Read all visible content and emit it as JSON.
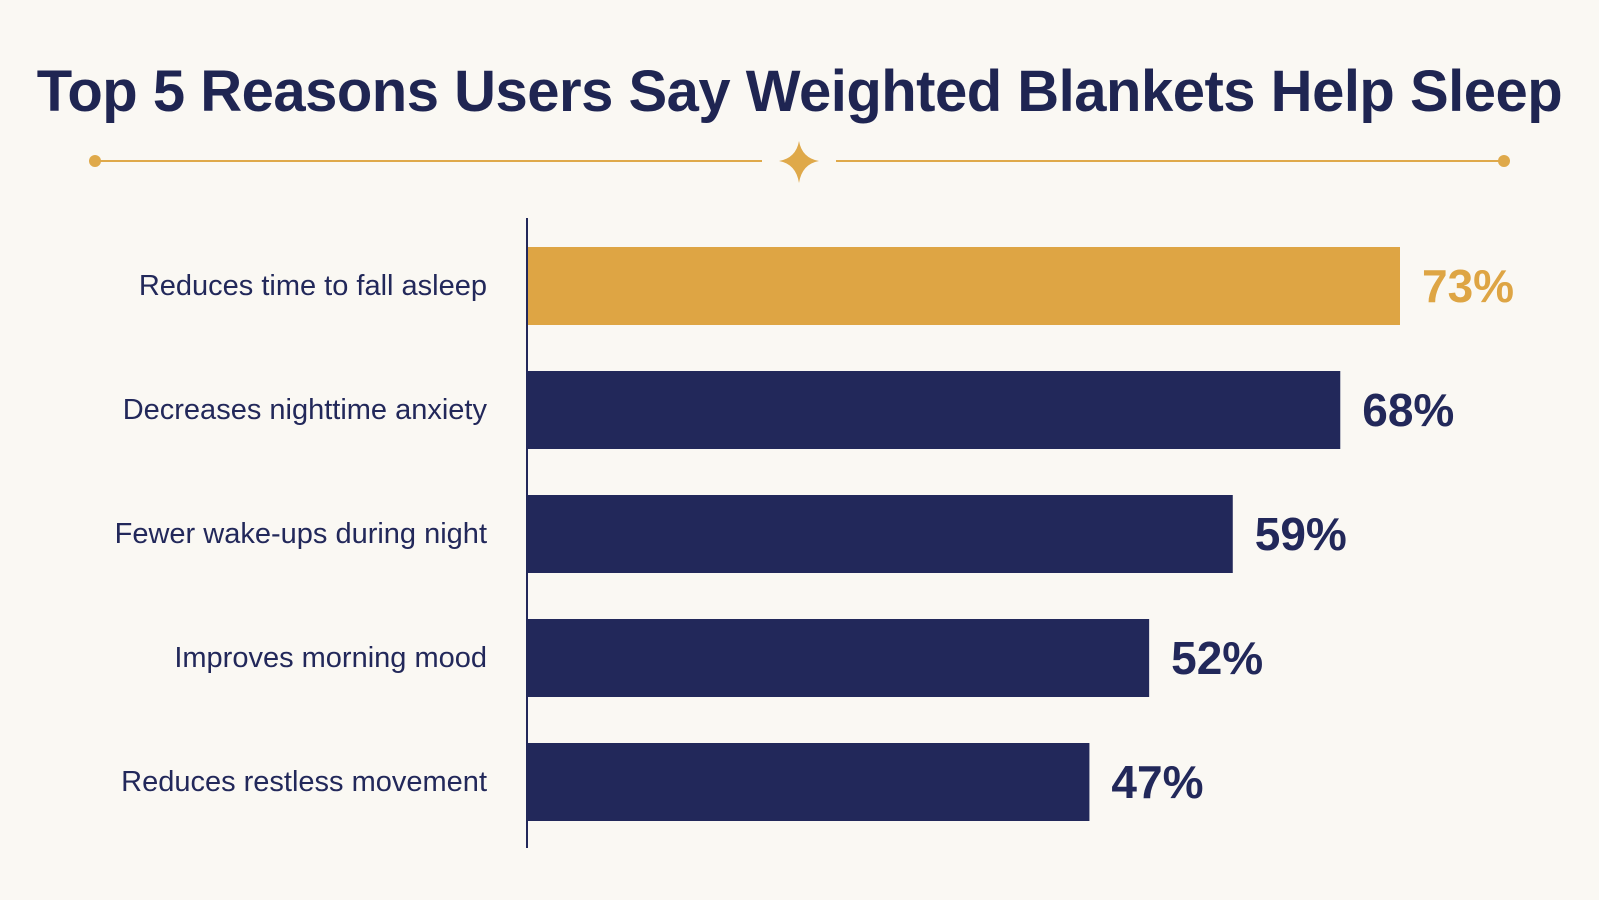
{
  "title": "Top 5 Reasons Users Say Weighted Blankets Help Sleep",
  "colors": {
    "background": "#faf8f3",
    "navy": "#22285a",
    "gold": "#dea544",
    "ornament": "#dfa94a"
  },
  "chart_data": {
    "type": "bar",
    "orientation": "horizontal",
    "title": "Top 5 Reasons Users Say Weighted Blankets Help Sleep",
    "categories": [
      "Reduces time to fall asleep",
      "Decreases nighttime anxiety",
      "Fewer wake-ups during night",
      "Improves morning mood",
      "Reduces restless movement"
    ],
    "values": [
      73,
      68,
      59,
      52,
      47
    ],
    "value_labels": [
      "73%",
      "68%",
      "59%",
      "52%",
      "47%"
    ],
    "highlight_index": 0,
    "unit": "%",
    "xlim": [
      0,
      73
    ],
    "grid": false,
    "legend": "none"
  }
}
